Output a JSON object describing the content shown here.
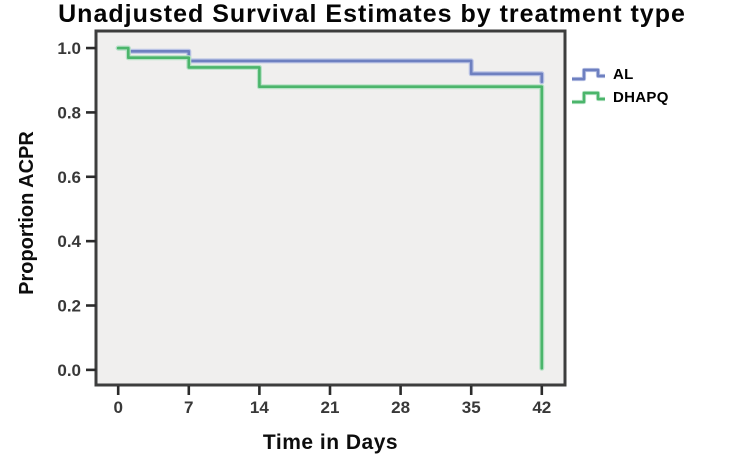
{
  "figure": {
    "title": "Unadjusted Survival Estimates by treatment type"
  },
  "chart_data": {
    "type": "line",
    "subtype": "kaplan-meier-step",
    "title": "Unadjusted Survival Estimates by treatment type",
    "xlabel": "Time in Days",
    "ylabel": "Proportion ACPR",
    "xticks": [
      0,
      7,
      14,
      21,
      28,
      35,
      42
    ],
    "ytick_labels": [
      "0.0",
      "0.2",
      "0.4",
      "0.6",
      "0.8",
      "1.0"
    ],
    "xlim": [
      -2.2,
      44.3
    ],
    "ylim": [
      -0.047,
      1.053
    ],
    "grid": false,
    "legend_position": "right-outside-top",
    "plot_bg": "#f0efee",
    "series": [
      {
        "name": "AL",
        "color": "#6e80c0",
        "halo": "#bac3e5",
        "points": [
          [
            0,
            1.0
          ],
          [
            1,
            1.0
          ],
          [
            1,
            0.99
          ],
          [
            7,
            0.99
          ],
          [
            7,
            0.96
          ],
          [
            35,
            0.96
          ],
          [
            35,
            0.92
          ],
          [
            42,
            0.92
          ],
          [
            42,
            0.895
          ]
        ]
      },
      {
        "name": "DHAPQ",
        "color": "#4bb56b",
        "halo": "#b7e2c6",
        "points": [
          [
            0,
            1.0
          ],
          [
            1,
            1.0
          ],
          [
            1,
            0.97
          ],
          [
            7,
            0.97
          ],
          [
            7,
            0.94
          ],
          [
            14,
            0.94
          ],
          [
            14,
            0.88
          ],
          [
            42,
            0.88
          ],
          [
            42,
            0.005
          ]
        ]
      }
    ]
  },
  "colors": {
    "page_bg": "#ffffff",
    "plot_border": "#3d3d3d",
    "tick": "#2b2b2b",
    "tick_label": "#383838",
    "title": "#050505",
    "axis_label": "#0d0d0d"
  }
}
